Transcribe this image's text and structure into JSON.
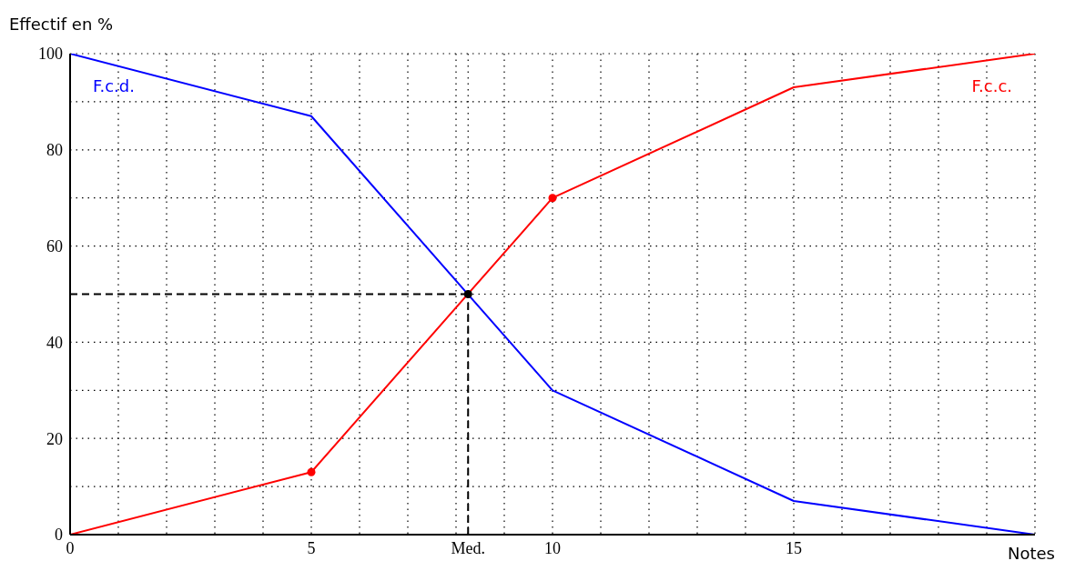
{
  "chart_data": {
    "type": "line",
    "ylabel": "Effectif en %",
    "xlabel": "Notes",
    "x": [
      0,
      5,
      10,
      15,
      20
    ],
    "series": [
      {
        "name": "F.c.d.",
        "color": "#0000ff",
        "values": [
          100,
          87,
          30,
          7,
          0
        ],
        "marker": "none"
      },
      {
        "name": "F.c.c.",
        "color": "#ff0000",
        "values": [
          0,
          13,
          70,
          93,
          100
        ],
        "marker": "none"
      },
      {
        "type": "scatter",
        "color": "#ff0000",
        "x": [
          5,
          10
        ],
        "values": [
          13,
          70
        ],
        "marker": "circle"
      },
      {
        "type": "scatter",
        "color": "#000000",
        "x": [
          8.25
        ],
        "values": [
          50
        ],
        "marker": "circle"
      }
    ],
    "xlim": [
      0,
      20
    ],
    "ylim": [
      0,
      100
    ],
    "xticks": [
      0,
      {
        "value": 1,
        "label": null
      },
      {
        "value": 2,
        "label": null
      },
      {
        "value": 3,
        "label": null
      },
      {
        "value": 4,
        "label": null
      },
      5,
      {
        "value": 6,
        "label": null
      },
      {
        "value": 7,
        "label": null
      },
      {
        "value": 8,
        "label": null
      },
      {
        "value": 8.25,
        "label": "Med."
      },
      {
        "value": 9,
        "label": null
      },
      10,
      {
        "value": 11,
        "label": null
      },
      {
        "value": 12,
        "label": null
      },
      {
        "value": 13,
        "label": null
      },
      {
        "value": 14,
        "label": null
      },
      15,
      {
        "value": 16,
        "label": null
      },
      {
        "value": 17,
        "label": null
      },
      {
        "value": 18,
        "label": null
      },
      {
        "value": 19,
        "label": null
      },
      {
        "value": 20,
        "label": null
      }
    ],
    "yticks": [
      0,
      {
        "value": 10,
        "label": null
      },
      20,
      {
        "value": 30,
        "label": null
      },
      40,
      {
        "value": 50,
        "label": null
      },
      60,
      {
        "value": 70,
        "label": null
      },
      80,
      {
        "value": 90,
        "label": null
      },
      100
    ],
    "ref_lines": [
      {
        "axis": "x",
        "value": 8.25,
        "color": "#000000",
        "line_style": "dashed"
      },
      {
        "axis": "y",
        "value": 50,
        "color": "#000000",
        "line_style": "dashed"
      }
    ],
    "grid": true,
    "line_style": "solid"
  }
}
